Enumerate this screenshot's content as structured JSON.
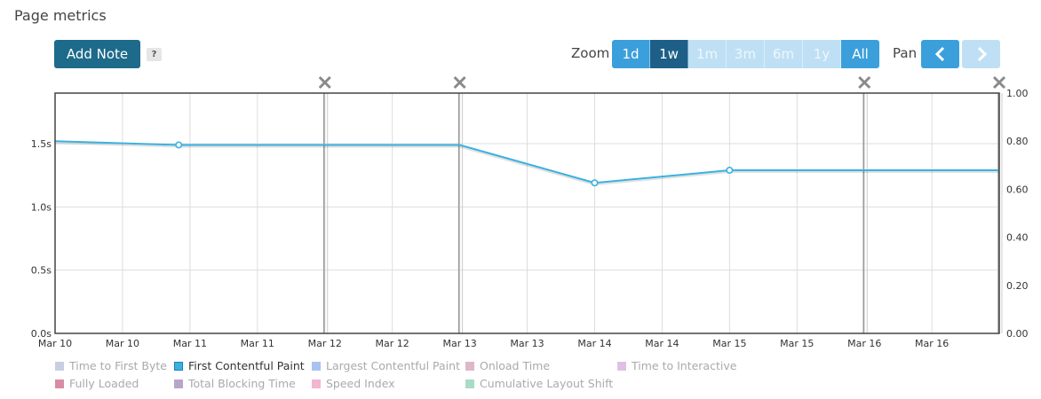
{
  "page": {
    "title": "Page metrics"
  },
  "toolbar": {
    "add_note_label": "Add Note",
    "help_label": "?",
    "zoom_label": "Zoom",
    "zoom_options": [
      {
        "label": "1d",
        "state": "enabled"
      },
      {
        "label": "1w",
        "state": "active"
      },
      {
        "label": "1m",
        "state": "disabled"
      },
      {
        "label": "3m",
        "state": "disabled"
      },
      {
        "label": "6m",
        "state": "disabled"
      },
      {
        "label": "1y",
        "state": "disabled"
      },
      {
        "label": "All",
        "state": "enabled"
      }
    ],
    "pan_label": "Pan",
    "pan_prev_icon": "chevron-left-icon",
    "pan_next_icon": "chevron-right-icon"
  },
  "colors": {
    "accent": "#3b9fdb",
    "active": "#1d5f86",
    "series_line": "#3ab1e0",
    "note_line": "#999999"
  },
  "chart_data": {
    "type": "line",
    "x_tick_labels": [
      "Mar 10",
      "Mar 10",
      "Mar 11",
      "Mar 11",
      "Mar 12",
      "Mar 12",
      "Mar 13",
      "Mar 13",
      "Mar 14",
      "Mar 14",
      "Mar 15",
      "Mar 15",
      "Mar 16",
      "Mar 16"
    ],
    "x_range": [
      "2024-03-10T00:00",
      "2024-03-16T23:59"
    ],
    "y_left": {
      "ticks": [
        "0.0s",
        "0.5s",
        "1.0s",
        "1.5s"
      ],
      "range": [
        0,
        1.9
      ],
      "unit": "s"
    },
    "y_right": {
      "ticks": [
        "0.00",
        "0.20",
        "0.40",
        "0.60",
        "0.80",
        "1.00"
      ],
      "range": [
        0,
        1.0
      ]
    },
    "grid": true,
    "series": [
      {
        "name": "First Contentful Paint",
        "color": "#3ab1e0",
        "points": [
          {
            "x": "2024-03-10T00:00",
            "y": 1.52
          },
          {
            "x": "2024-03-10T22:00",
            "y": 1.49,
            "marker": true
          },
          {
            "x": "2024-03-13T00:00",
            "y": 1.49
          },
          {
            "x": "2024-03-14T00:00",
            "y": 1.19,
            "marker": true
          },
          {
            "x": "2024-03-15T00:00",
            "y": 1.29,
            "marker": true
          },
          {
            "x": "2024-03-16T23:59",
            "y": 1.29
          }
        ]
      }
    ],
    "notes": [
      "2024-03-12T00:00",
      "2024-03-13T00:00",
      "2024-03-16T00:00",
      "2024-03-16T23:59"
    ],
    "legend": [
      {
        "label": "Time to First Byte",
        "color": "#c9cedf",
        "active": false
      },
      {
        "label": "First Contentful Paint",
        "color": "#3ab1e0",
        "active": true
      },
      {
        "label": "Largest Contentful Paint",
        "color": "#a9c3ef",
        "active": false
      },
      {
        "label": "Onload Time",
        "color": "#dcb8c8",
        "active": false
      },
      {
        "label": "Time to Interactive",
        "color": "#dfc0e4",
        "active": false
      },
      {
        "label": "Fully Loaded",
        "color": "#d88da4",
        "active": false
      },
      {
        "label": "Total Blocking Time",
        "color": "#b8a6c8",
        "active": false
      },
      {
        "label": "Speed Index",
        "color": "#f2b6cf",
        "active": false
      },
      {
        "label": "Cumulative Layout Shift",
        "color": "#a9dcc8",
        "active": false
      }
    ]
  }
}
